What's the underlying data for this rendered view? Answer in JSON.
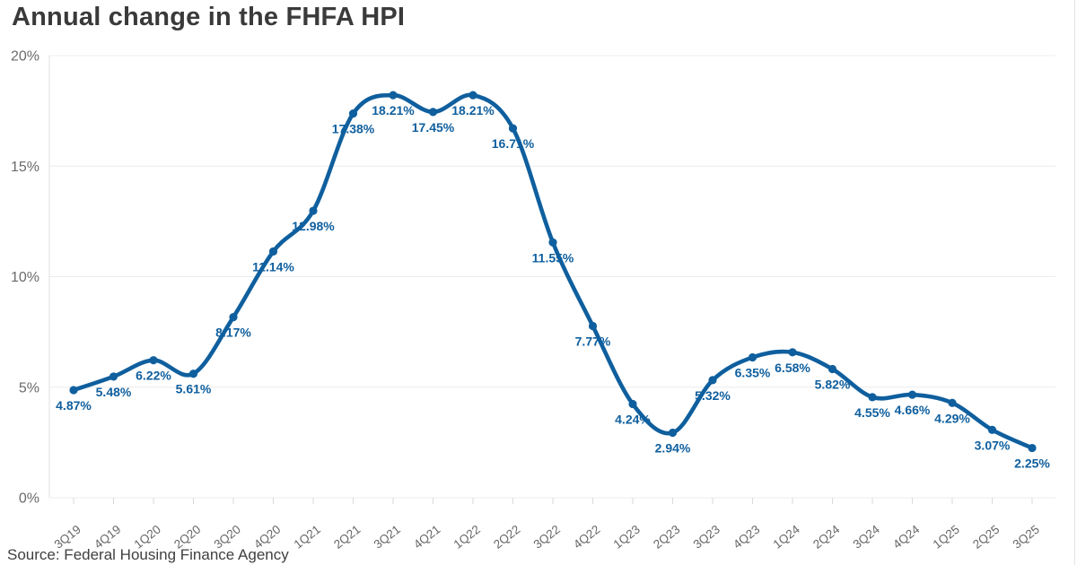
{
  "title": "Annual change in the FHFA HPI",
  "source": "Source: Federal Housing Finance Agency",
  "colors": {
    "line": "#0f5f9e",
    "point_label": "#0f5f9e",
    "grid": "#ececec",
    "axis_line": "#e2e2e2",
    "tick": "#dadada",
    "axis_text": "#666666"
  },
  "chart_data": {
    "type": "line",
    "title": "Annual change in the FHFA HPI",
    "categories": [
      "3Q19",
      "4Q19",
      "1Q20",
      "2Q20",
      "3Q20",
      "4Q20",
      "1Q21",
      "2Q21",
      "3Q21",
      "4Q21",
      "1Q22",
      "2Q22",
      "3Q22",
      "4Q22",
      "1Q23",
      "2Q23",
      "3Q23",
      "4Q23",
      "1Q24",
      "2Q24",
      "3Q24",
      "4Q24",
      "1Q25",
      "2Q25",
      "3Q25"
    ],
    "values": [
      4.87,
      5.48,
      6.22,
      5.61,
      8.17,
      11.14,
      12.98,
      17.38,
      18.21,
      17.45,
      18.21,
      16.71,
      11.55,
      7.77,
      4.24,
      2.94,
      5.32,
      6.35,
      6.58,
      5.82,
      4.55,
      4.66,
      4.29,
      3.07,
      2.25
    ],
    "point_labels": [
      "4.87%",
      "5.48%",
      "6.22%",
      "5.61%",
      "8.17%",
      "11.14%",
      "12.98%",
      "17.38%",
      "18.21%",
      "17.45%",
      "18.21%",
      "16.71%",
      "11.55%",
      "7.77%",
      "4.24%",
      "2.94%",
      "5.32%",
      "6.35%",
      "6.58%",
      "5.82%",
      "4.55%",
      "4.66%",
      "4.29%",
      "3.07%",
      "2.25%"
    ],
    "yticks": [
      0,
      5,
      10,
      15,
      20
    ],
    "ytick_labels": [
      "0%",
      "5%",
      "10%",
      "15%",
      "20%"
    ],
    "ylim": [
      0,
      20
    ],
    "xlabel": "",
    "ylabel": "",
    "grid": "horizontal",
    "legend": "none"
  }
}
